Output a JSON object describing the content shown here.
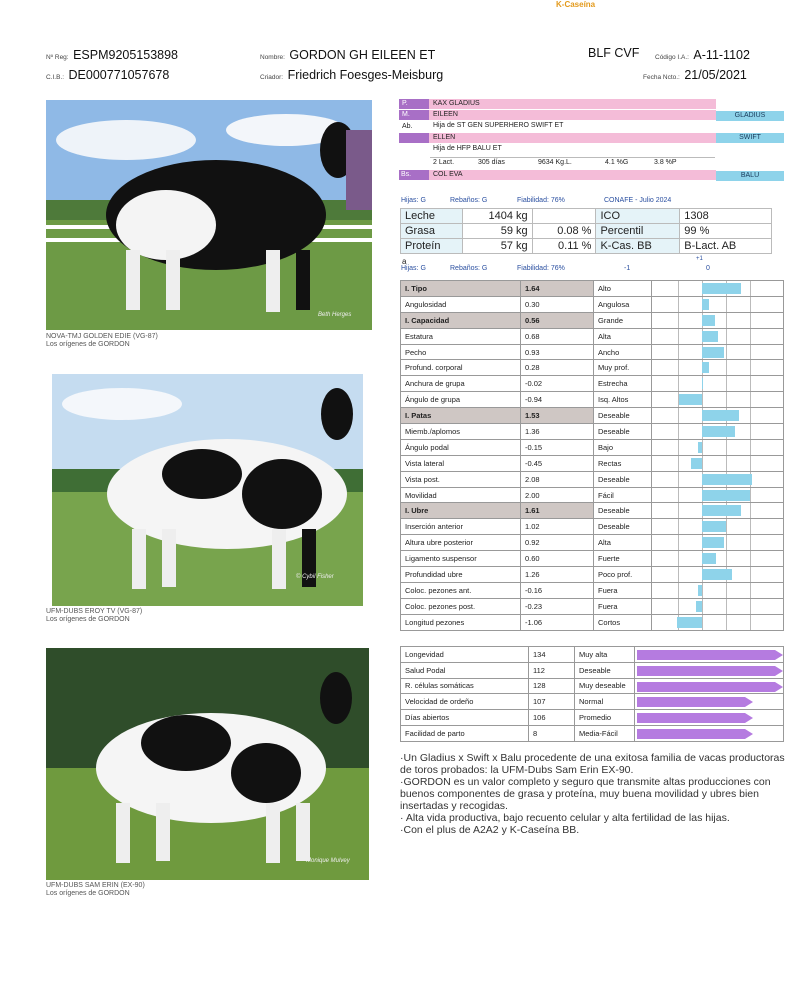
{
  "brand": {
    "kcaseina": "K-Caseína"
  },
  "header": {
    "reg_label": "Nº Reg:",
    "reg_value": "ESPM9205153898",
    "cib_label": "C.I.B.:",
    "cib_value": "DE000771057678",
    "name_label": "Nombre:",
    "name_value": "GORDON GH EILEEN ET",
    "breeder_label": "Criador:",
    "breeder_value": "Friedrich Foesges-Meisburg",
    "blf": "BLF CVF",
    "code_label": "Código I.A.:",
    "code_value": "A-11-1102",
    "birth_label": "Fecha Ncto.:",
    "birth_value": "21/05/2021"
  },
  "photos": [
    {
      "caption": "NOVA-TMJ GOLDEN EDIE (VG-87)",
      "subcaption": "Los orígenes de GORDON",
      "credit": "Beth Herges"
    },
    {
      "caption": "UFM-DUBS EROY TV (VG-87)",
      "subcaption": "Los orígenes de GORDON",
      "credit": "© Cybil Fisher"
    },
    {
      "caption": "UFM-DUBS SAM ERIN (EX-90)",
      "subcaption": "Los orígenes de GORDON",
      "credit": "Monique Mulvey"
    }
  ],
  "pedigree": {
    "p_label": "P.",
    "p_name": "KAX GLADIUS",
    "m_label": "M.",
    "m_name": "EILEEN",
    "m_tag": "GLADIUS",
    "ab_label": "Ab.",
    "ab_name": "Hija de ST GEN SUPERHERO SWIFT ET",
    "ellen_name": "ELLEN",
    "ellen_tag": "SWIFT",
    "ellen_sub": "Hija de HFP BALU ET",
    "lact": "2 Lact.",
    "days": "305 días",
    "kg": "9634 Kg.L.",
    "fat": "4.1 %G",
    "prot": "3.8 %P",
    "bs_label": "Bs.",
    "bs_name": "COL EVA",
    "bs_tag": "BALU"
  },
  "production": {
    "hijas": "Hijas: G",
    "rebanos": "Rebaños: G",
    "fiab": "Fiabilidad: 76%",
    "conafe": "CONAFE - Julio 2024",
    "rows": [
      {
        "a": "Leche",
        "b": "1404 kg",
        "c": "",
        "d": "ICO",
        "e": "1308"
      },
      {
        "a": "Grasa",
        "b": "59 kg",
        "c": "0.08 %",
        "d": "Percentil",
        "e": "99 %"
      },
      {
        "a": "Proteín",
        "b": "57 kg",
        "c": "0.11 %",
        "d": "K-Cas. BB",
        "e": "B-Lact. AB"
      }
    ],
    "trailing": "a"
  },
  "type_head": {
    "hijas": "Hijas: G",
    "rebanos": "Rebaños: G",
    "fiab": "Fiabilidad: 76%",
    "m1": "-1",
    "p1": "+1",
    "zero": "0"
  },
  "linear": [
    {
      "trait": "I. Tipo",
      "value": "1.64",
      "desc": "Alto",
      "num": 1.64,
      "group": true
    },
    {
      "trait": "Angulosidad",
      "value": "0.30",
      "desc": "Angulosa",
      "num": 0.3
    },
    {
      "trait": "I. Capacidad",
      "value": "0.56",
      "desc": "Grande",
      "num": 0.56,
      "group": true
    },
    {
      "trait": "Estatura",
      "value": "0.68",
      "desc": "Alta",
      "num": 0.68
    },
    {
      "trait": "Pecho",
      "value": "0.93",
      "desc": "Ancho",
      "num": 0.93
    },
    {
      "trait": "Profund. corporal",
      "value": "0.28",
      "desc": "Muy prof.",
      "num": 0.28
    },
    {
      "trait": "Anchura de grupa",
      "value": "-0.02",
      "desc": "Estrecha",
      "num": -0.02
    },
    {
      "trait": "Ángulo de grupa",
      "value": "-0.94",
      "desc": "Isq. Altos",
      "num": -0.94
    },
    {
      "trait": "I. Patas",
      "value": "1.53",
      "desc": "Deseable",
      "num": 1.53,
      "group": true
    },
    {
      "trait": "Miemb./aplomos",
      "value": "1.36",
      "desc": "Deseable",
      "num": 1.36
    },
    {
      "trait": "Ángulo podal",
      "value": "-0.15",
      "desc": "Bajo",
      "num": -0.15
    },
    {
      "trait": "Vista lateral",
      "value": "-0.45",
      "desc": "Rectas",
      "num": -0.45
    },
    {
      "trait": "Vista post.",
      "value": "2.08",
      "desc": "Deseable",
      "num": 2.08
    },
    {
      "trait": "Movilidad",
      "value": "2.00",
      "desc": "Fácil",
      "num": 2.0
    },
    {
      "trait": "I. Ubre",
      "value": "1.61",
      "desc": "Deseable",
      "num": 1.61,
      "group": true
    },
    {
      "trait": "Inserción anterior",
      "value": "1.02",
      "desc": "Deseable",
      "num": 1.02
    },
    {
      "trait": "Altura ubre posterior",
      "value": "0.92",
      "desc": "Alta",
      "num": 0.92
    },
    {
      "trait": "Ligamento suspensor",
      "value": "0.60",
      "desc": "Fuerte",
      "num": 0.6
    },
    {
      "trait": "Profundidad ubre",
      "value": "1.26",
      "desc": "Poco prof.",
      "num": 1.26
    },
    {
      "trait": "Coloc. pezones ant.",
      "value": "-0.16",
      "desc": "Fuera",
      "num": -0.16
    },
    {
      "trait": "Coloc. pezones post.",
      "value": "-0.23",
      "desc": "Fuera",
      "num": -0.23
    },
    {
      "trait": "Longitud pezones",
      "value": "-1.06",
      "desc": "Cortos",
      "num": -1.06
    }
  ],
  "functional": [
    {
      "trait": "Longevidad",
      "value": "134",
      "desc": "Muy alta",
      "level": 1.0
    },
    {
      "trait": "Salud Podal",
      "value": "112",
      "desc": "Deseable",
      "level": 1.0
    },
    {
      "trait": "R. células somáticas",
      "value": "128",
      "desc": "Muy deseable",
      "level": 1.0
    },
    {
      "trait": "Velocidad de ordeño",
      "value": "107",
      "desc": "Normal",
      "level": 0.78
    },
    {
      "trait": "Días abiertos",
      "value": "106",
      "desc": "Promedio",
      "level": 0.78
    },
    {
      "trait": "Facilidad de parto",
      "value": "8",
      "desc": "Media-Fácil",
      "level": 0.78
    }
  ],
  "description": [
    "·Un Gladius x Swift x Balu procedente de una exitosa familia de vacas productoras de toros probados: la UFM-Dubs Sam Erin EX-90.",
    "·GORDON es un valor completo y seguro que transmite altas producciones con buenos componentes de grasa y proteína, muy buena movilidad y ubres bien insertadas y recogidas.",
    "· Alta vida productiva, bajo recuento celular y alta fertilidad de las hijas.",
    "·Con el plus de A2A2 y K-Caseína BB."
  ],
  "colors": {
    "pink": "#f4bcd8",
    "purple": "#a86fc6",
    "blue": "#8ed3ea",
    "arrow": "#b57be0",
    "group": "#cfc7c4"
  }
}
